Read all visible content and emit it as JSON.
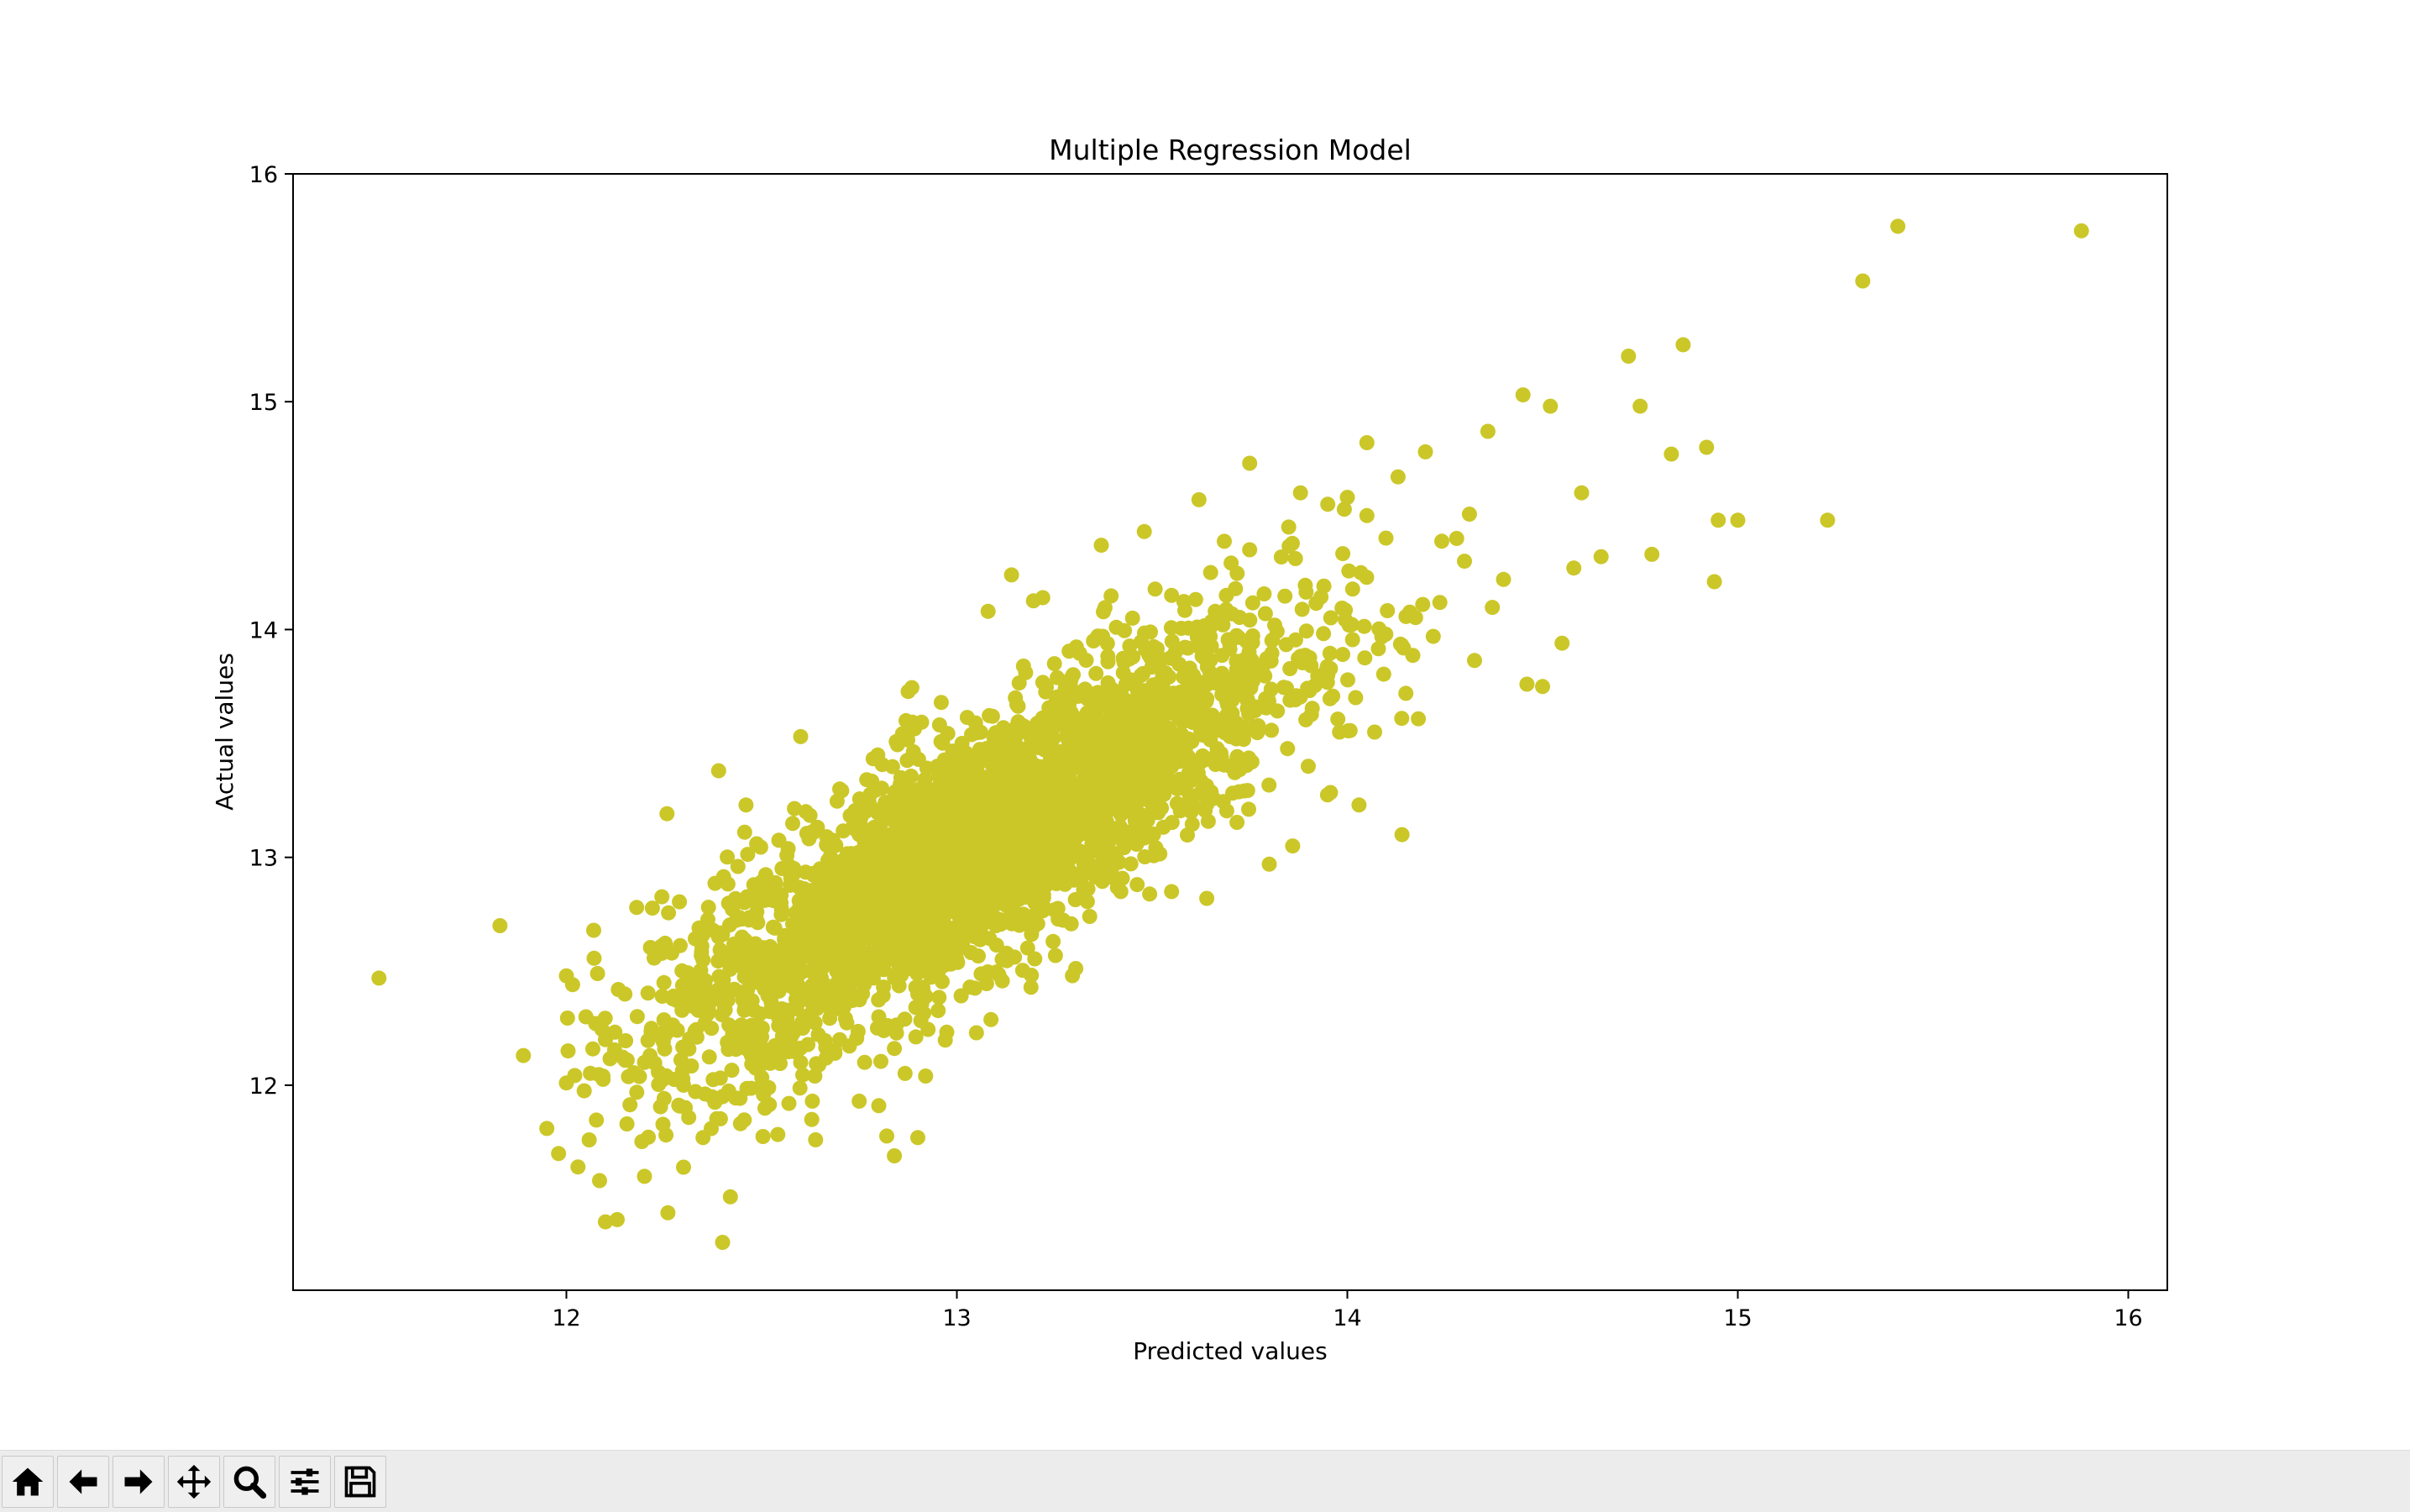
{
  "window": {
    "toolbar": {
      "buttons": [
        {
          "name": "home-button",
          "icon": "home-icon"
        },
        {
          "name": "back-button",
          "icon": "arrow-left-icon"
        },
        {
          "name": "forward-button",
          "icon": "arrow-right-icon"
        },
        {
          "name": "pan-button",
          "icon": "move-icon"
        },
        {
          "name": "zoom-button",
          "icon": "magnifier-icon"
        },
        {
          "name": "configure-subplots-button",
          "icon": "sliders-icon"
        },
        {
          "name": "save-button",
          "icon": "floppy-disk-icon"
        }
      ]
    }
  },
  "chart_data": {
    "type": "scatter",
    "title": "Multiple Regression Model",
    "xlabel": "Predicted values",
    "ylabel": "Actual values",
    "xlim": [
      11.3,
      16.1
    ],
    "ylim": [
      11.1,
      16.0
    ],
    "xticks": [
      12,
      13,
      14,
      15,
      16
    ],
    "yticks": [
      12,
      13,
      14,
      15,
      16
    ],
    "grid": false,
    "marker_color": "#cbc728",
    "notes_on_density": "dense central cloud along y≈x from about (12.3,12.3) to (13.8,13.8); outliers listed below",
    "points": [
      [
        11.52,
        12.47
      ],
      [
        11.83,
        12.7
      ],
      [
        11.89,
        12.13
      ],
      [
        11.95,
        11.81
      ],
      [
        11.98,
        11.7
      ],
      [
        12.0,
        12.48
      ],
      [
        12.0,
        12.01
      ],
      [
        12.07,
        12.68
      ],
      [
        12.1,
        11.4
      ],
      [
        12.13,
        11.41
      ],
      [
        12.18,
        12.78
      ],
      [
        12.2,
        11.6
      ],
      [
        12.26,
        11.44
      ],
      [
        12.27,
        12.58
      ],
      [
        12.3,
        11.64
      ],
      [
        12.35,
        11.77
      ],
      [
        12.39,
        13.38
      ],
      [
        12.4,
        11.31
      ],
      [
        12.42,
        11.51
      ],
      [
        12.46,
        13.23
      ],
      [
        12.48,
        12.88
      ],
      [
        12.57,
        11.92
      ],
      [
        12.6,
        13.53
      ],
      [
        12.63,
        11.93
      ],
      [
        12.7,
        13.3
      ],
      [
        12.75,
        11.93
      ],
      [
        12.8,
        11.91
      ],
      [
        12.84,
        11.69
      ],
      [
        12.87,
        13.6
      ],
      [
        12.9,
        11.77
      ],
      [
        12.92,
        12.04
      ],
      [
        12.96,
        13.68
      ],
      [
        13.05,
        12.23
      ],
      [
        13.08,
        14.08
      ],
      [
        13.14,
        14.24
      ],
      [
        13.19,
        12.43
      ],
      [
        13.22,
        14.14
      ],
      [
        13.37,
        14.37
      ],
      [
        13.42,
        12.85
      ],
      [
        13.48,
        14.43
      ],
      [
        13.55,
        12.85
      ],
      [
        13.62,
        14.57
      ],
      [
        13.64,
        12.82
      ],
      [
        13.75,
        14.73
      ],
      [
        13.8,
        12.97
      ],
      [
        13.86,
        13.05
      ],
      [
        13.88,
        14.6
      ],
      [
        14.0,
        14.58
      ],
      [
        14.03,
        13.23
      ],
      [
        14.05,
        14.82
      ],
      [
        14.13,
        14.67
      ],
      [
        14.14,
        13.1
      ],
      [
        14.2,
        14.78
      ],
      [
        14.28,
        14.4
      ],
      [
        14.36,
        14.87
      ],
      [
        14.45,
        15.03
      ],
      [
        14.52,
        14.98
      ],
      [
        14.6,
        14.6
      ],
      [
        14.65,
        14.32
      ],
      [
        14.72,
        15.2
      ],
      [
        14.75,
        14.98
      ],
      [
        14.78,
        14.33
      ],
      [
        14.83,
        14.77
      ],
      [
        14.86,
        15.25
      ],
      [
        14.92,
        14.8
      ],
      [
        14.94,
        14.21
      ],
      [
        14.95,
        14.48
      ],
      [
        15.0,
        14.48
      ],
      [
        15.23,
        14.48
      ],
      [
        15.32,
        15.53
      ],
      [
        15.41,
        15.77
      ],
      [
        15.88,
        15.75
      ],
      [
        14.46,
        13.76
      ],
      [
        14.5,
        13.75
      ],
      [
        14.55,
        13.94
      ],
      [
        14.58,
        14.27
      ],
      [
        14.4,
        14.22
      ],
      [
        14.3,
        14.3
      ],
      [
        14.22,
        13.97
      ],
      [
        14.15,
        13.72
      ],
      [
        14.07,
        13.55
      ],
      [
        13.98,
        13.55
      ],
      [
        13.9,
        13.4
      ],
      [
        13.95,
        13.8
      ],
      [
        13.7,
        13.4
      ],
      [
        13.6,
        13.2
      ],
      [
        13.5,
        13.1
      ],
      [
        13.4,
        13.0
      ],
      [
        13.3,
        12.9
      ],
      [
        13.2,
        12.8
      ],
      [
        13.1,
        12.7
      ],
      [
        13.0,
        12.55
      ],
      [
        12.9,
        12.4
      ],
      [
        12.8,
        12.3
      ],
      [
        12.7,
        12.2
      ],
      [
        12.6,
        12.1
      ],
      [
        12.5,
        12.0
      ],
      [
        12.4,
        11.95
      ],
      [
        12.3,
        12.0
      ],
      [
        12.2,
        12.1
      ],
      [
        12.1,
        12.2
      ],
      [
        12.05,
        12.3
      ],
      [
        12.15,
        12.4
      ],
      [
        12.25,
        12.45
      ],
      [
        12.35,
        12.55
      ],
      [
        12.45,
        12.65
      ],
      [
        12.55,
        12.8
      ],
      [
        12.65,
        12.95
      ],
      [
        12.75,
        13.1
      ],
      [
        12.85,
        13.25
      ],
      [
        12.95,
        13.4
      ],
      [
        13.05,
        13.55
      ],
      [
        13.15,
        13.7
      ],
      [
        13.25,
        13.85
      ],
      [
        13.35,
        13.95
      ],
      [
        13.45,
        14.05
      ],
      [
        13.55,
        14.15
      ],
      [
        13.65,
        14.25
      ],
      [
        13.75,
        14.35
      ],
      [
        13.85,
        14.45
      ],
      [
        13.95,
        14.55
      ],
      [
        14.05,
        14.5
      ]
    ]
  }
}
